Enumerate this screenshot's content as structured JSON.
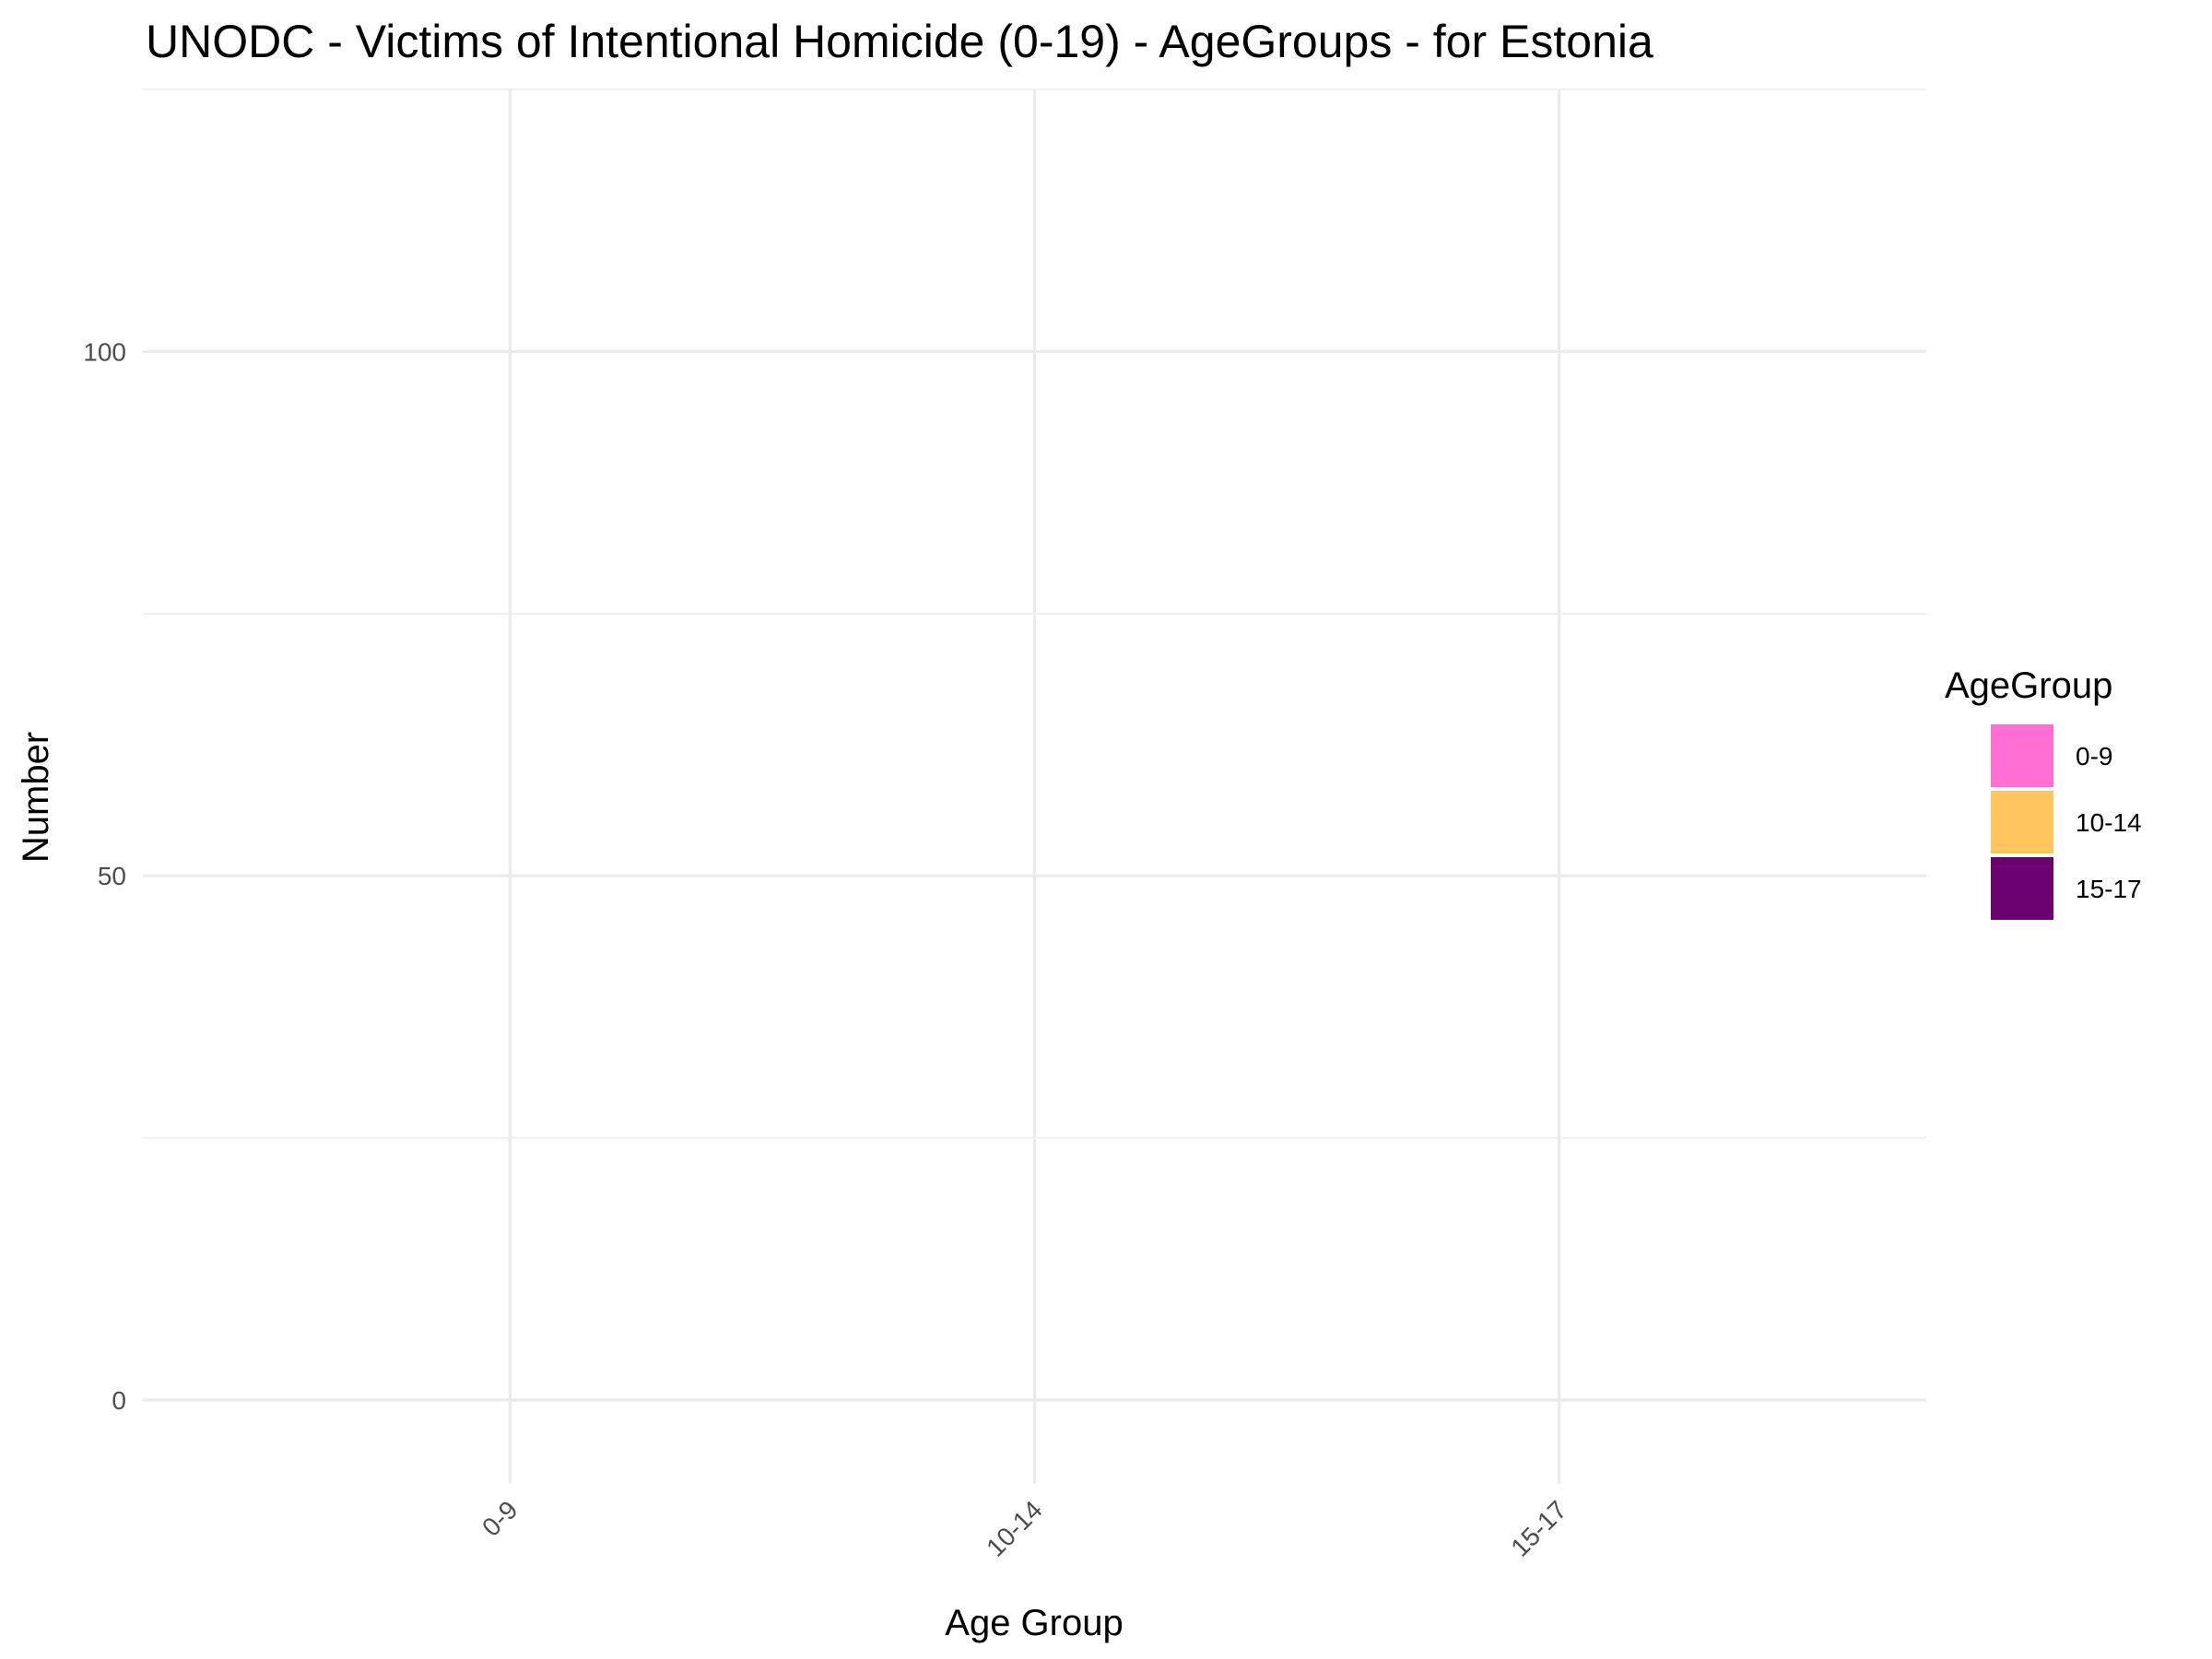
{
  "chart_data": {
    "type": "bar",
    "title": "UNODC - Victims of Intentional Homicide (0-19) - AgeGroups - for Estonia",
    "xlabel": "Age Group",
    "ylabel": "Number",
    "categories": [
      "0-9",
      "10-14",
      "15-17"
    ],
    "series": [
      {
        "name": "AgeGroup",
        "values": [
          0,
          0,
          0
        ]
      }
    ],
    "ylim": [
      -8,
      125
    ],
    "yticks": [
      0,
      50,
      100
    ],
    "y_minor_ticks": [
      25,
      75,
      125
    ],
    "ytick_labels": [
      "0",
      "50",
      "100"
    ],
    "grid": true,
    "legend": {
      "title": "AgeGroup",
      "placement": "right",
      "entries": [
        {
          "label": "0-9",
          "color": "#FF6ED2"
        },
        {
          "label": "10-14",
          "color": "#FFC65E"
        },
        {
          "label": "15-17",
          "color": "#6B006F"
        }
      ]
    }
  }
}
